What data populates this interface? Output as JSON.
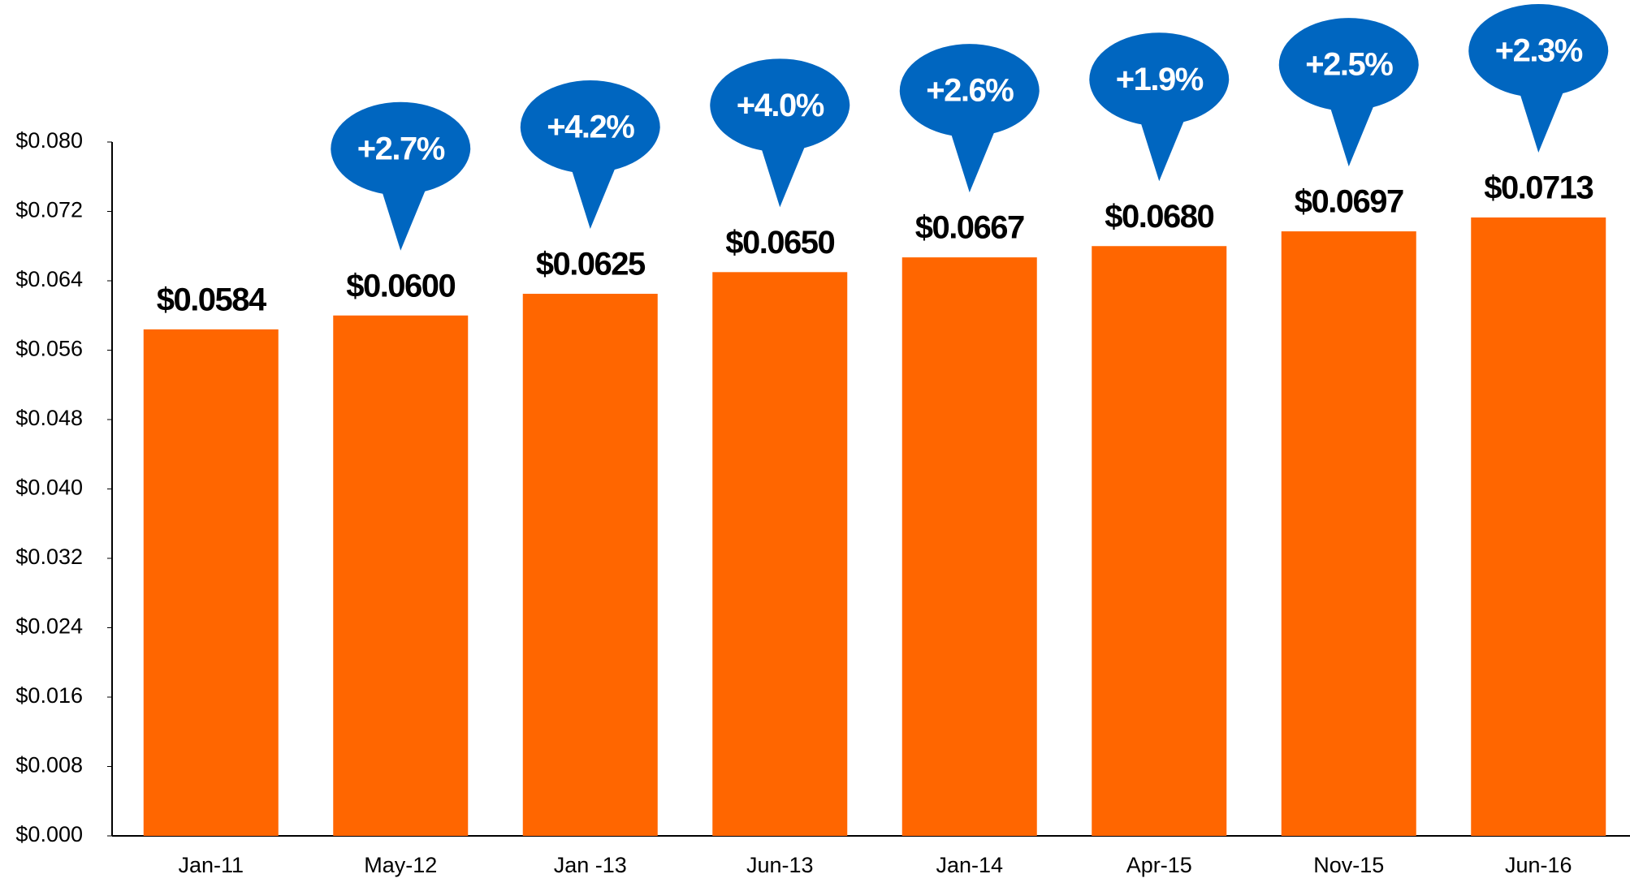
{
  "chart_data": {
    "type": "bar",
    "categories": [
      "Jan-11",
      "May-12",
      "Jan -13",
      "Jun-13",
      "Jan-14",
      "Apr-15",
      "Nov-15",
      "Jun-16"
    ],
    "values": [
      0.0584,
      0.06,
      0.0625,
      0.065,
      0.0667,
      0.068,
      0.0697,
      0.0713
    ],
    "value_labels": [
      "$0.0584",
      "$0.0600",
      "$0.0625",
      "$0.0650",
      "$0.0667",
      "$0.0680",
      "$0.0697",
      "$0.0713"
    ],
    "changes": [
      null,
      2.7,
      4.2,
      4.0,
      2.6,
      1.9,
      2.5,
      2.3
    ],
    "change_labels": [
      null,
      "+2.7%",
      "+4.2%",
      "+4.0%",
      "+2.6%",
      "+1.9%",
      "+2.5%",
      "+2.3%"
    ],
    "color": "#ff6600",
    "change_color": "#0066c0",
    "ylim": [
      0,
      0.08
    ],
    "yticks": [
      {
        "value": 0,
        "label": "$0.000"
      },
      {
        "value": 0.008,
        "label": "$0.008"
      },
      {
        "value": 0.016,
        "label": "$0.016"
      },
      {
        "value": 0.024,
        "label": "$0.024"
      },
      {
        "value": 0.032,
        "label": "$0.032"
      },
      {
        "value": 0.04,
        "label": "$0.040"
      },
      {
        "value": 0.048,
        "label": "$0.048"
      },
      {
        "value": 0.056,
        "label": "$0.056"
      },
      {
        "value": 0.064,
        "label": "$0.064"
      },
      {
        "value": 0.072,
        "label": "$0.072"
      },
      {
        "value": 0.08,
        "label": "$0.080"
      }
    ],
    "grid": false
  }
}
